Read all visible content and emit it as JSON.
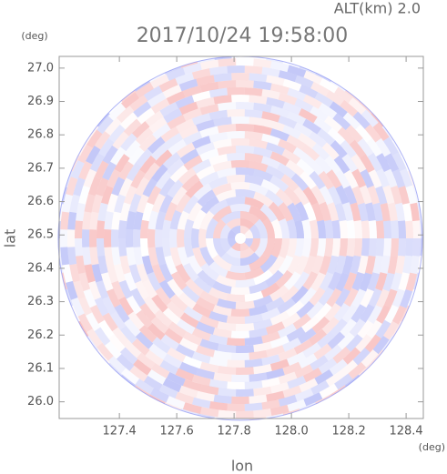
{
  "chart_data": {
    "type": "radar-ppi",
    "title": "2017/10/24 19:58:00",
    "subtitle": "ALT(km) 2.0",
    "x_label": "lon",
    "y_label": "lat",
    "x_unit": "(deg)",
    "y_unit": "(deg)",
    "xlim": [
      127.19,
      128.46
    ],
    "ylim": [
      25.95,
      27.035
    ],
    "xticks": [
      127.4,
      127.6,
      127.8,
      {
        "value": 128.0,
        "label": "128.0"
      },
      128.2,
      128.4
    ],
    "yticks": [
      {
        "value": 26.0,
        "label": "26.0"
      },
      26.1,
      26.2,
      26.3,
      26.4,
      26.5,
      26.6,
      26.7,
      26.8,
      26.9,
      {
        "value": 27.0,
        "label": "27.0"
      }
    ]
  }
}
